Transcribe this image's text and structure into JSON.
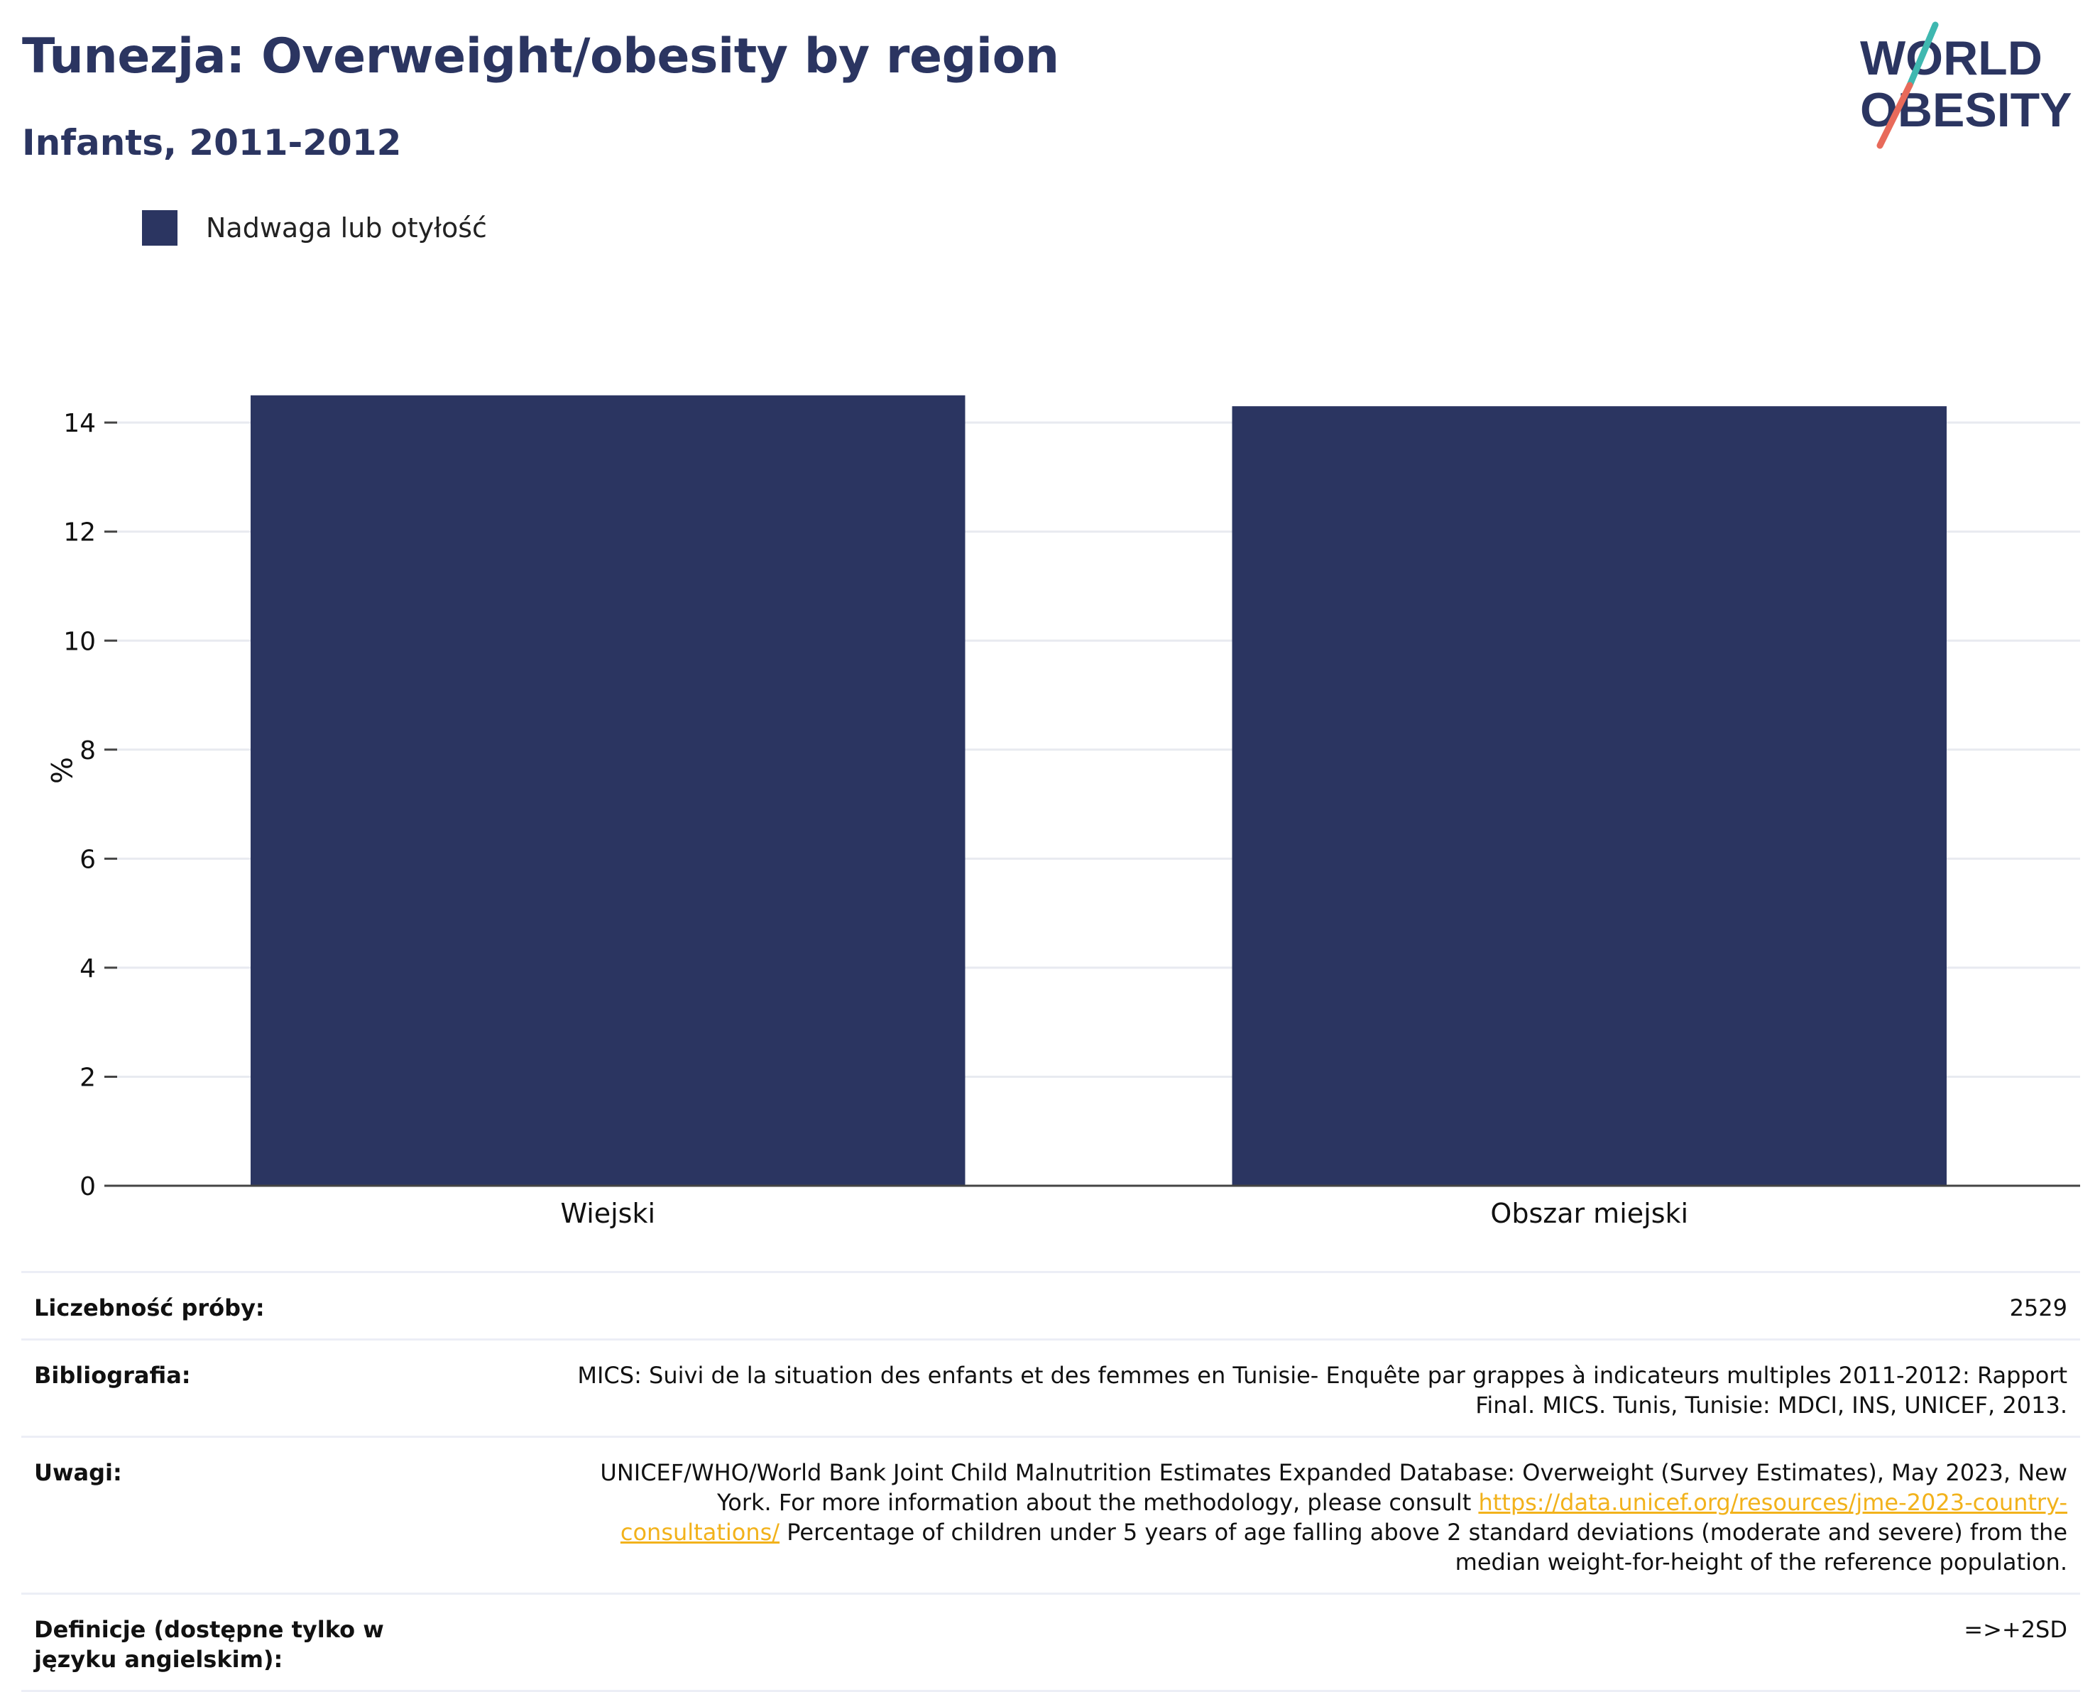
{
  "header": {
    "title": "Tunezja: Overweight/obesity by region",
    "subtitle": "Infants, 2011-2012"
  },
  "logo": {
    "line1": "WORLD",
    "line2": "OBESITY",
    "colors": {
      "text": "#2b3561",
      "slash_top": "#3fb8b0",
      "slash_bottom": "#e86a5a"
    }
  },
  "legend": {
    "label": "Nadwaga lub otyłość",
    "color": "#2b3561"
  },
  "chart_data": {
    "type": "bar",
    "categories": [
      "Wiejski",
      "Obszar miejski"
    ],
    "series": [
      {
        "name": "Nadwaga lub otyłość",
        "values": [
          14.5,
          14.3
        ],
        "color": "#2b3561"
      }
    ],
    "ylabel": "%",
    "xlabel": "",
    "ylim": [
      0,
      15.5
    ],
    "yticks": [
      0,
      2,
      4,
      6,
      8,
      10,
      12,
      14
    ],
    "grid": true
  },
  "info": {
    "sample_label": "Liczebność próby:",
    "sample_value": "2529",
    "bibliography_label": "Bibliografia:",
    "bibliography_value": "MICS: Suivi de la situation des enfants et des femmes en Tunisie- Enquête par grappes à indicateurs multiples 2011-2012: Rapport Final. MICS. Tunis, Tunisie: MDCI, INS, UNICEF, 2013.",
    "notes_label": "Uwagi:",
    "notes_text_1": "UNICEF/WHO/World Bank Joint Child Malnutrition Estimates Expanded Database: Overweight (Survey Estimates), May 2023, New York. For more information about the methodology, please consult ",
    "notes_link": "https://data.unicef.org/resources/jme-2023-country-consultations/",
    "notes_text_2": " Percentage of children under 5 years of age falling above 2 standard deviations (moderate and severe) from the median weight-for-height of the reference population.",
    "definitions_label": "Definicje (dostępne tylko w języku angielskim):",
    "definitions_value": "=>+2SD"
  }
}
